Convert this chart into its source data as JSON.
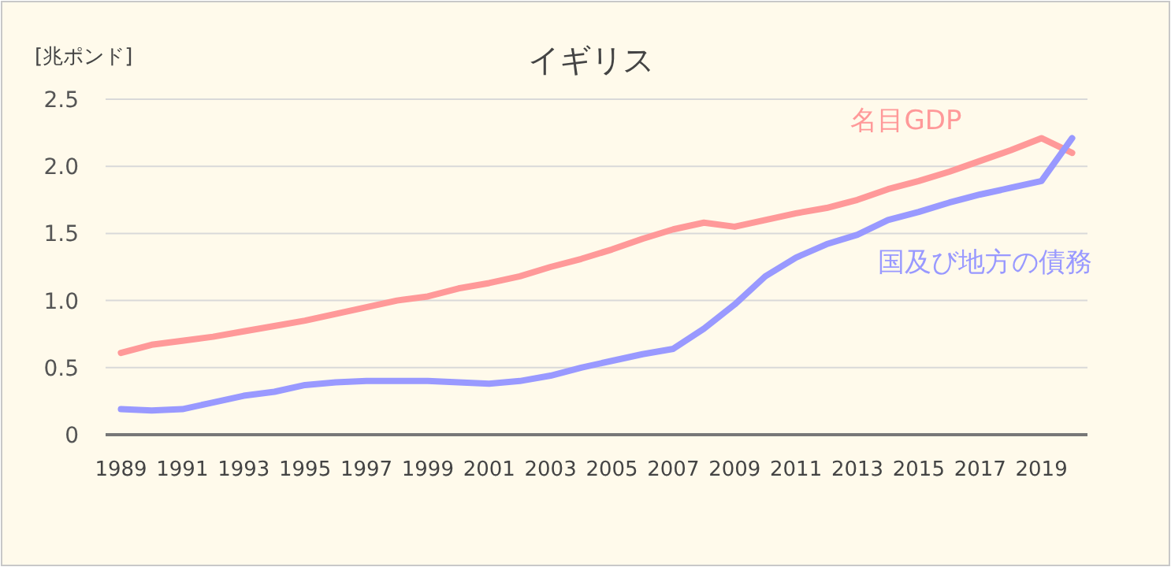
{
  "chart_data": {
    "type": "line",
    "title": "イギリス",
    "ylabel": "[兆ポンド]",
    "x": [
      1989,
      1990,
      1991,
      1992,
      1993,
      1994,
      1995,
      1996,
      1997,
      1998,
      1999,
      2000,
      2001,
      2002,
      2003,
      2004,
      2005,
      2006,
      2007,
      2008,
      2009,
      2010,
      2011,
      2012,
      2013,
      2014,
      2015,
      2016,
      2017,
      2018,
      2019,
      2020
    ],
    "xlim": [
      1988.5,
      2020.5
    ],
    "xticks": [
      1989,
      1991,
      1993,
      1995,
      1997,
      1999,
      2001,
      2003,
      2005,
      2007,
      2009,
      2011,
      2013,
      2015,
      2017,
      2019
    ],
    "ylim": [
      0,
      2.5
    ],
    "yticks": [
      0,
      {
        "value": 0.5,
        "label": "0.5"
      },
      {
        "value": 1,
        "label": "1.0"
      },
      {
        "value": 1.5,
        "label": "1.5"
      },
      {
        "value": 2,
        "label": "2.0"
      },
      {
        "value": 2.5,
        "label": "2.5"
      }
    ],
    "grid": "y",
    "marker": "none",
    "line_style": "solid",
    "legend": false,
    "series": [
      {
        "name": "名目GDP",
        "color": "#ff9999",
        "values": [
          0.61,
          0.67,
          0.7,
          0.73,
          0.77,
          0.81,
          0.85,
          0.9,
          0.95,
          1.0,
          1.03,
          1.09,
          1.13,
          1.18,
          1.25,
          1.31,
          1.38,
          1.46,
          1.53,
          1.58,
          1.55,
          1.6,
          1.65,
          1.69,
          1.75,
          1.83,
          1.89,
          1.96,
          2.04,
          2.12,
          2.21,
          2.1
        ]
      },
      {
        "name": "国及び地方の債務",
        "color": "#9999ff",
        "values": [
          0.19,
          0.18,
          0.19,
          0.24,
          0.29,
          0.32,
          0.37,
          0.39,
          0.4,
          0.4,
          0.4,
          0.39,
          0.38,
          0.4,
          0.44,
          0.5,
          0.55,
          0.6,
          0.64,
          0.79,
          0.97,
          1.18,
          1.32,
          1.42,
          1.49,
          1.6,
          1.66,
          1.73,
          1.79,
          1.84,
          1.89,
          2.21
        ]
      }
    ]
  }
}
